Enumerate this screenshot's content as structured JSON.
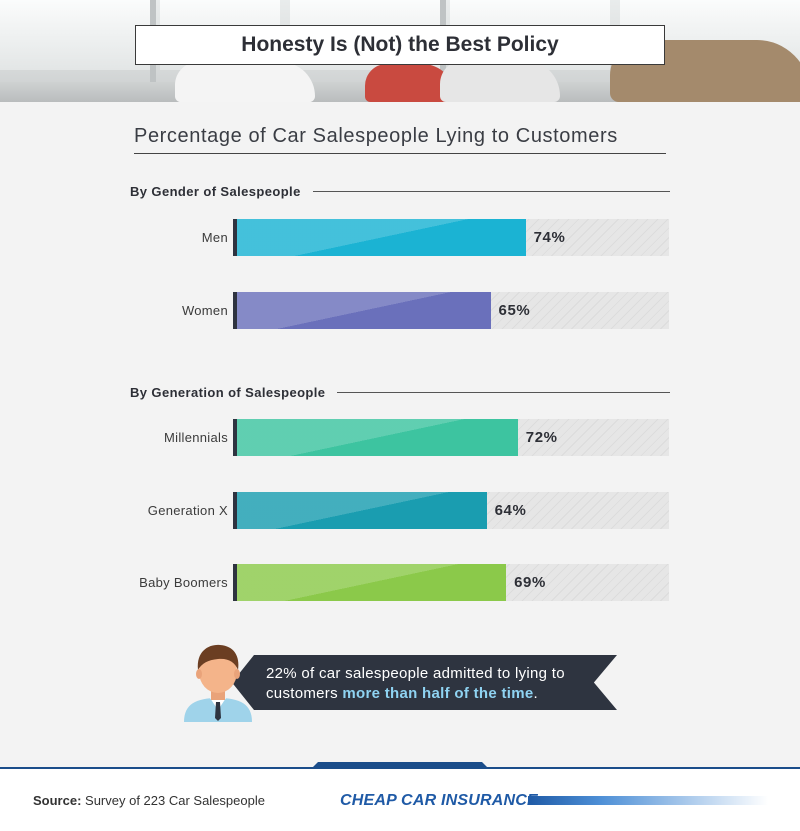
{
  "header": {
    "title": "Honesty Is (Not) the Best Policy"
  },
  "chart_data": {
    "type": "bar",
    "title": "Percentage of Car Salespeople Lying to Customers",
    "xlim": [
      0,
      100
    ],
    "groups": [
      {
        "title": "By Gender of Salespeople",
        "bars": [
          {
            "label": "Men",
            "value": 74,
            "value_label": "74%",
            "color": "#1bb3d3"
          },
          {
            "label": "Women",
            "value": 65,
            "value_label": "65%",
            "color": "#6a70bb"
          }
        ]
      },
      {
        "title": "By Generation of Salespeople",
        "bars": [
          {
            "label": "Millennials",
            "value": 72,
            "value_label": "72%",
            "color": "#3dc4a0"
          },
          {
            "label": "Generation X",
            "value": 64,
            "value_label": "64%",
            "color": "#1a9db0"
          },
          {
            "label": "Baby Boomers",
            "value": 69,
            "value_label": "69%",
            "color": "#8bc94a"
          }
        ]
      }
    ]
  },
  "callout": {
    "text_before": "22% of car salespeople admitted to lying to customers ",
    "highlight": "more than half of the time",
    "text_after": "."
  },
  "footer": {
    "source_label": "Source:",
    "source_text": " Survey of 223 Car Salespeople",
    "logo_text": "CHEAP CAR INSURANCE"
  }
}
